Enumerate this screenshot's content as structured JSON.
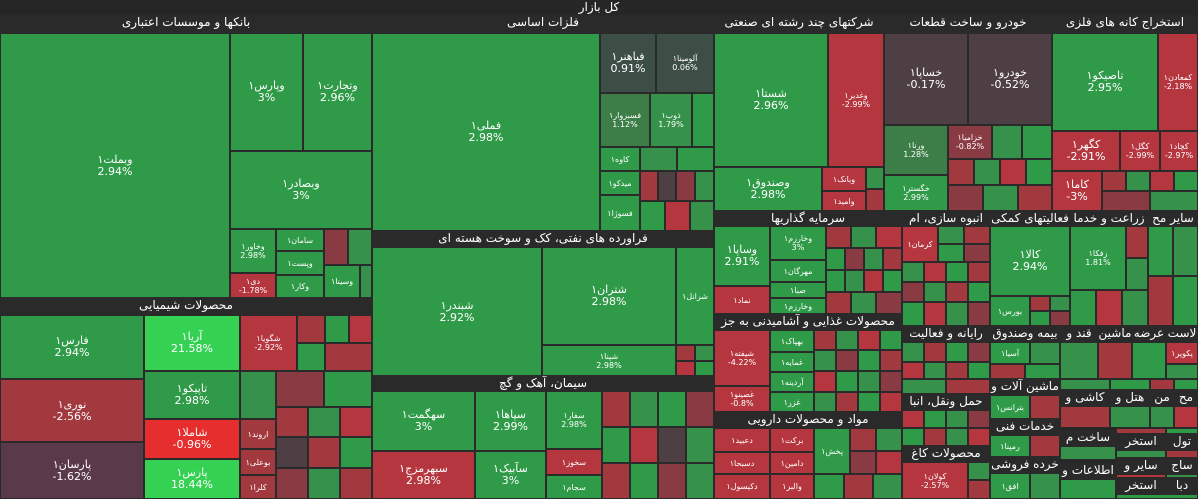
{
  "title": "کل بازار",
  "colors": {
    "strong_green": "#2f9a48",
    "light_green": "#34d153",
    "red": "#b5363f",
    "bright_red": "#e62e2e",
    "neutral": "#4e3f45"
  },
  "sectors": {
    "banks": "بانکها و موسسات اعتباری",
    "metals": "فلزات اساسی",
    "multi": "شرکتهای چند رشته ای صنعتی",
    "auto": "خودرو و ساخت قطعات",
    "mining": "استخراج کانه های فلزی",
    "chem": "محصولات شیمیایی",
    "oil": "فراورده های نفتی، کک و سوخت هسته ای",
    "cement": "سیمان، آهک و گچ",
    "invest": "سرمایه گذاریها",
    "build": "انبوه سازی، ام",
    "support": "فعالیتهای کمکی",
    "agri": "زراعت و خدما",
    "misc": "سایر مح",
    "food": "محصولات غذایی و آشامیدنی به جز",
    "pharma": "مواد و محصولات دارویی",
    "computer": "رایانه و فعالیت",
    "insurance": "بیمه وصندوق",
    "sugar": "قند و",
    "machine": "ماشین آلات و",
    "transport": "حمل ونقل، انبا",
    "services": "خدمات فنی",
    "paper": "محصولات کاغ",
    "retail": "خرده فروشی",
    "lease": "لاست",
    "supply": "عرضه",
    "mashin": "ماشین",
    "build2": "ساخت م",
    "hotel": "هتل و",
    "textile": "کاشی و",
    "wood": "من",
    "med": "مح",
    "tool": "تول",
    "extra": "استخر",
    "saw": "ساج",
    "info": "اطلاعات و",
    "other": "سایر و",
    "media": "دبا"
  },
  "tiles": {
    "vbmellat": {
      "name": "وبملت۱",
      "change": "2.94%"
    },
    "vpars": {
      "name": "وپارس۱",
      "change": "3%"
    },
    "vtejarat": {
      "name": "وتجارت۱",
      "change": "2.96%"
    },
    "vbsader": {
      "name": "وبصادر۱",
      "change": "3%"
    },
    "vkhavar": {
      "name": "وخاور۱",
      "change": "2.98%"
    },
    "di": {
      "name": "دی۱",
      "change": "-1.78%"
    },
    "saman": {
      "name": "سامان۱"
    },
    "vpost": {
      "name": "وپست۱"
    },
    "vkar": {
      "name": "وکار۱"
    },
    "vsina": {
      "name": "وسینا۱"
    },
    "femeli": {
      "name": "فملی۱",
      "change": "2.98%"
    },
    "fbahonar": {
      "name": "فباهنر۱",
      "change": "0.91%"
    },
    "faloomina": {
      "name": "آلومینا۱",
      "change": "0.06%"
    },
    "fsabzevar": {
      "name": "فسبزوار۱",
      "change": "1.12%"
    },
    "zob": {
      "name": "ذوب۱",
      "change": "1.79%"
    },
    "kaveh": {
      "name": "کاوه۱"
    },
    "midco": {
      "name": "میدکو۱"
    },
    "foolad": {
      "name": "فسوژا۱"
    },
    "shasta": {
      "name": "شستا۱",
      "change": "2.96%"
    },
    "vghadir": {
      "name": "وغدیر۱",
      "change": "-2.99%"
    },
    "vsandoogh": {
      "name": "وصندوق۱",
      "change": "2.98%"
    },
    "vbank": {
      "name": "وبانک۱"
    },
    "vamid": {
      "name": "وامید۱"
    },
    "khsapa": {
      "name": "خساپا۱",
      "change": "-0.17%"
    },
    "khodro": {
      "name": "خودرو۱",
      "change": "-0.52%"
    },
    "khzamia": {
      "name": "خزامیا۱",
      "change": "-0.82%"
    },
    "vrena": {
      "name": "ورنا۱",
      "change": "1.28%"
    },
    "khgostar": {
      "name": "خگستر۱",
      "change": "2.99%"
    },
    "tapiko": {
      "name": "تاصیکو۱",
      "change": "2.95%"
    },
    "kemadan": {
      "name": "کمعادن۱",
      "change": "-2.18%"
    },
    "kgohar": {
      "name": "کگهر۱",
      "change": "-2.91%"
    },
    "kgol": {
      "name": "کگل۱",
      "change": "-2.99%"
    },
    "kchad": {
      "name": "کچاد۱",
      "change": "-2.97%"
    },
    "kama": {
      "name": "کاما۱",
      "change": "-3%"
    },
    "faras": {
      "name": "فارس۱",
      "change": "2.94%"
    },
    "aria": {
      "name": "آریا۱",
      "change": "21.58%"
    },
    "shgooya": {
      "name": "شگویا۱",
      "change": "-2.92%"
    },
    "noori": {
      "name": "نوری۱",
      "change": "-2.56%"
    },
    "tapico": {
      "name": "تاپیکو۱",
      "change": "2.98%"
    },
    "shamla": {
      "name": "شاملا۱",
      "change": "-0.96%"
    },
    "parsan": {
      "name": "پارسان۱",
      "change": "-1.62%"
    },
    "pars": {
      "name": "پارس۱",
      "change": "18.44%"
    },
    "arvand": {
      "name": "اروند۱"
    },
    "boali": {
      "name": "بوعلی۱"
    },
    "kolra": {
      "name": "کلرا۱"
    },
    "shbandar": {
      "name": "شبندر۱",
      "change": "2.92%"
    },
    "shtran": {
      "name": "شتران۱",
      "change": "2.98%"
    },
    "shpna": {
      "name": "شپنا۱",
      "change": "2.98%"
    },
    "shralal": {
      "name": "شرانل۱"
    },
    "sfarsi": {
      "name": "سفارس۱"
    },
    "shegmat": {
      "name": "سهگمت۱",
      "change": "3%"
    },
    "sepaha": {
      "name": "سپاها۱",
      "change": "2.99%"
    },
    "sabeka": {
      "name": "سآبیک۱",
      "change": "3%"
    },
    "sbhmzj": {
      "name": "سبهرمزج۱",
      "change": "2.98%"
    },
    "sfaar": {
      "name": "سفار۱",
      "change": "2.98%"
    },
    "skhooz": {
      "name": "سخوز۱"
    },
    "sjam": {
      "name": "سجام۱"
    },
    "vsapa": {
      "name": "وساپا۱",
      "change": "2.91%"
    },
    "vkharazm": {
      "name": "وخارزم۱",
      "change": "3%"
    },
    "vmehrgan": {
      "name": "مهرگان۱"
    },
    "saba": {
      "name": "صبا۱"
    },
    "vkharazm2": {
      "name": "وخارزم۱"
    },
    "nama": {
      "name": "نماد۱"
    },
    "shefta": {
      "name": "شیفته۱",
      "change": "-4.22%"
    },
    "ghsipo": {
      "name": "غصینو۱",
      "change": "-0.8%"
    },
    "bhak": {
      "name": "بهپاک۱"
    },
    "ghmaye": {
      "name": "غمایه۱"
    },
    "ardis": {
      "name": "آردینه۱"
    },
    "ghzar": {
      "name": "غزر۱"
    },
    "dabid": {
      "name": "دعبید۱"
    },
    "barkat": {
      "name": "برکت۱"
    },
    "dsbha": {
      "name": "دسبحا۱"
    },
    "damin": {
      "name": "دامین۱"
    },
    "pakhsh": {
      "name": "پخش۱"
    },
    "dkisol": {
      "name": "دکیسول۱"
    },
    "valbr": {
      "name": "والبر۱"
    },
    "kerma": {
      "name": "کرمان۱"
    },
    "kala": {
      "name": "کالا۱",
      "change": "2.94%"
    },
    "zafka": {
      "name": "زفکا۱",
      "change": "1.81%"
    },
    "bourse": {
      "name": "بورس۱"
    },
    "asia": {
      "name": "آسیا۱"
    },
    "betran": {
      "name": "بترانس۱"
    },
    "romia": {
      "name": "رمپنا۱"
    },
    "kolan": {
      "name": "کولان۱",
      "change": "-2.57%"
    },
    "afgh": {
      "name": "افق۱"
    },
    "pkoir": {
      "name": "پکویر۱"
    }
  }
}
